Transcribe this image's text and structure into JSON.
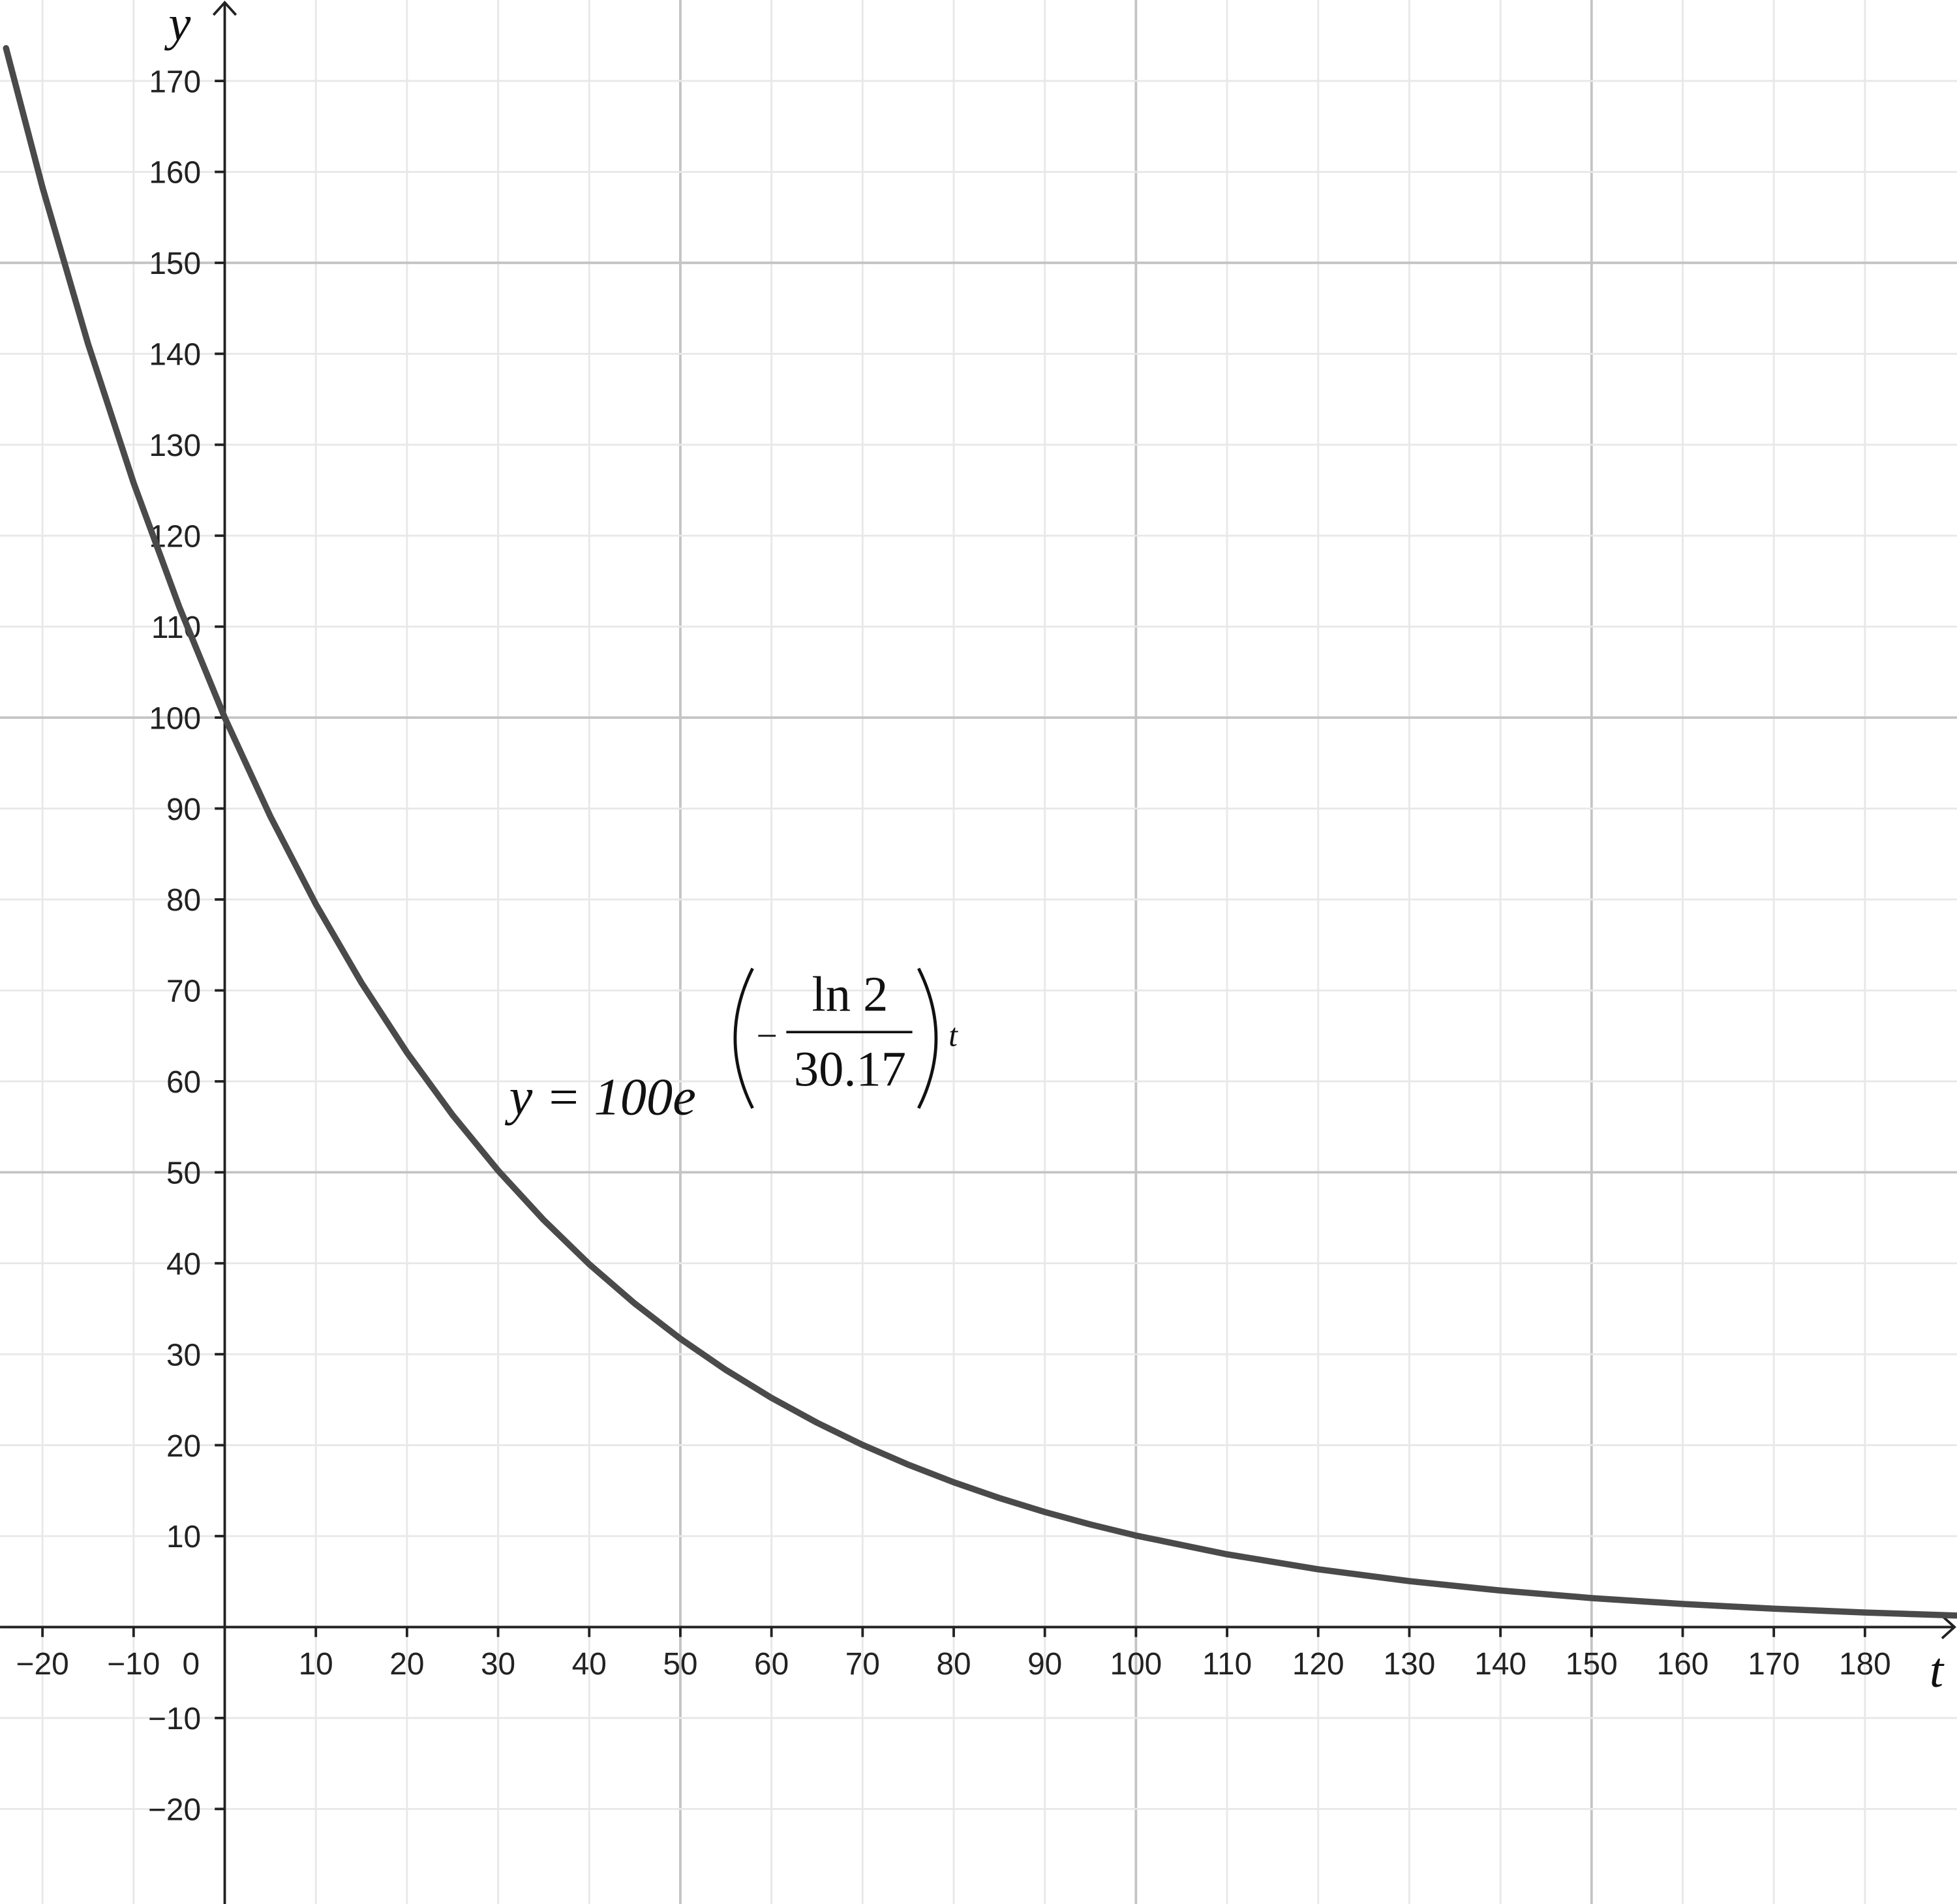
{
  "chart_data": {
    "type": "line",
    "x": [
      -24,
      -20,
      -15,
      -10,
      -5,
      0,
      5,
      10,
      15,
      20,
      25,
      30,
      35,
      40,
      45,
      50,
      55,
      60,
      65,
      70,
      75,
      80,
      85,
      90,
      95,
      100,
      110,
      120,
      130,
      140,
      150,
      160,
      170,
      180,
      190
    ],
    "values": [
      173.6,
      158.3,
      141.1,
      125.8,
      112.2,
      100,
      89.15,
      79.48,
      70.85,
      63.17,
      56.31,
      50.2,
      44.76,
      39.9,
      35.57,
      31.71,
      28.27,
      25.2,
      22.47,
      20.03,
      17.86,
      15.92,
      14.19,
      12.65,
      11.28,
      10.06,
      8.0,
      6.35,
      5.05,
      4.02,
      3.19,
      2.54,
      2.02,
      1.6,
      1.27
    ],
    "color": "#4a4a4a",
    "xlabel": "t",
    "ylabel": "y",
    "xlim": [
      -24.66,
      190.1
    ],
    "ylim": [
      -30.45,
      178.9
    ],
    "xticks": [
      {
        "value": -20,
        "label": "−20"
      },
      {
        "value": -10,
        "label": "−10"
      },
      0,
      10,
      20,
      30,
      40,
      50,
      60,
      70,
      80,
      90,
      100,
      110,
      120,
      130,
      140,
      150,
      160,
      170,
      180
    ],
    "yticks": [
      {
        "value": -20,
        "label": "−20"
      },
      {
        "value": -10,
        "label": "−10"
      },
      10,
      20,
      30,
      40,
      50,
      60,
      70,
      80,
      90,
      100,
      110,
      120,
      130,
      140,
      150,
      160,
      170
    ],
    "grid": true,
    "annotation": {
      "lhs": "y = 100e",
      "sign": "−",
      "numerator": "ln 2",
      "denominator": "30.17",
      "variable": "t"
    }
  }
}
